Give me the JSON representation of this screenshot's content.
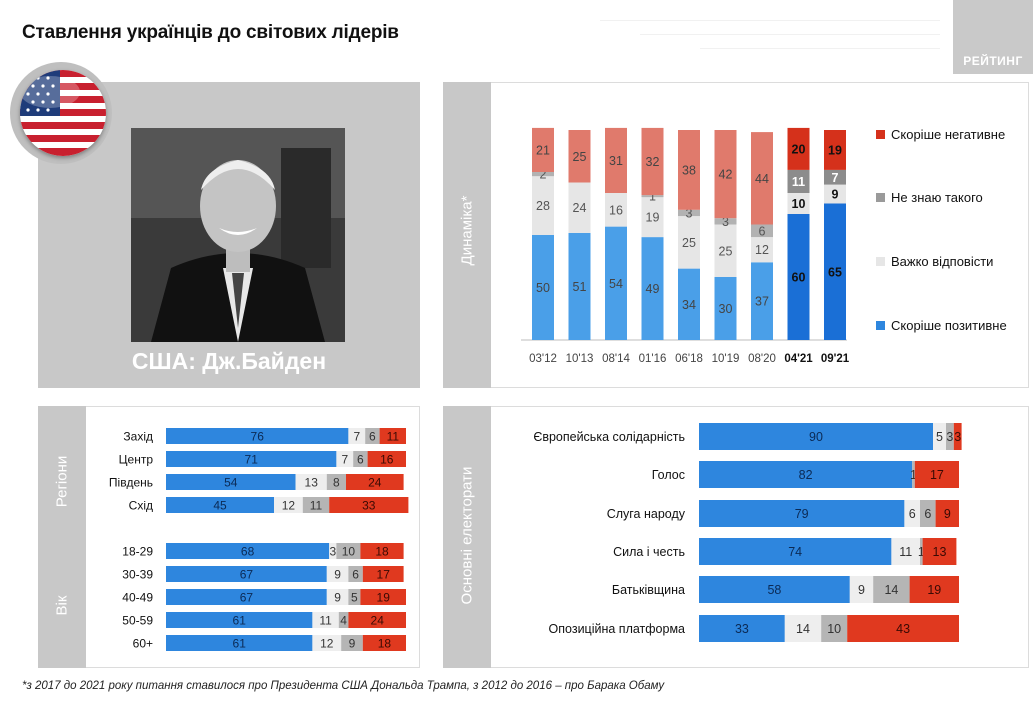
{
  "title": "Ставлення українців до світових лідерів",
  "logo": "РЕЙТИНГ",
  "caption": "США: Дж.Байден",
  "panel_labels": {
    "dynamics": "Динаміка*",
    "regions": "Регіони",
    "age": "Вік",
    "electorates": "Основні електорати"
  },
  "footnote": "*з 2017 до 2021 року питання ставилося про Президента США Дональда Трампа, з 2012 до 2016 – про Барака Обаму",
  "colors": {
    "positive": "#4a9fe8",
    "hard": "#e6e6e6",
    "unknown": "#b2b2b2",
    "negative": "#e07a6c",
    "positive_strong": "#1a6fd6",
    "negative_strong": "#d5311b",
    "unknown_strong": "#8c8c8c",
    "bar_positive": "#2e86de",
    "bar_negative": "#e0391f",
    "bar_unknown": "#b5b5b5",
    "bar_hard": "#eeeeee"
  },
  "chart_data": [
    {
      "type": "bar",
      "stacked": true,
      "orientation": "vertical",
      "categories": [
        "03'12",
        "10'13",
        "08'14",
        "01'16",
        "06'18",
        "10'19",
        "08'20",
        "04'21",
        "09'21"
      ],
      "highlighted_categories": [
        "04'21",
        "09'21"
      ],
      "series": [
        {
          "name": "Скоріше позитивне",
          "values": [
            50,
            51,
            54,
            49,
            34,
            30,
            37,
            60,
            65
          ]
        },
        {
          "name": "Важко відповісти",
          "values": [
            28,
            24,
            16,
            19,
            25,
            25,
            12,
            10,
            9
          ]
        },
        {
          "name": "Не знаю такого",
          "values": [
            2,
            null,
            null,
            1,
            3,
            3,
            6,
            11,
            7
          ]
        },
        {
          "name": "Скоріше негативне",
          "values": [
            21,
            25,
            31,
            32,
            38,
            42,
            44,
            20,
            19
          ]
        }
      ],
      "legend_order": [
        "Скоріше негативне",
        "Не знаю такого",
        "Важко відповісти",
        "Скоріше позитивне"
      ],
      "legend": "right"
    },
    {
      "type": "bar",
      "stacked": true,
      "orientation": "horizontal",
      "groups": [
        {
          "label": "Регіони",
          "categories": [
            "Захід",
            "Центр",
            "Південь",
            "Схід"
          ]
        },
        {
          "label": "Вік",
          "categories": [
            "18-29",
            "30-39",
            "40-49",
            "50-59",
            "60+"
          ]
        }
      ],
      "categories": [
        "Захід",
        "Центр",
        "Південь",
        "Схід",
        "18-29",
        "30-39",
        "40-49",
        "50-59",
        "60+"
      ],
      "series": [
        {
          "name": "Скоріше позитивне",
          "values": [
            76,
            71,
            54,
            45,
            68,
            67,
            67,
            61,
            61
          ]
        },
        {
          "name": "Важко відповісти",
          "values": [
            7,
            7,
            13,
            12,
            3,
            9,
            9,
            11,
            12
          ]
        },
        {
          "name": "Не знаю такого",
          "values": [
            6,
            6,
            8,
            11,
            10,
            6,
            5,
            4,
            9
          ]
        },
        {
          "name": "Скоріше негативне",
          "values": [
            11,
            16,
            24,
            33,
            18,
            17,
            19,
            24,
            18
          ]
        }
      ]
    },
    {
      "type": "bar",
      "stacked": true,
      "orientation": "horizontal",
      "label": "Основні електорати",
      "categories": [
        "Європейська солідарність",
        "Голос",
        "Слуга народу",
        "Сила і честь",
        "Батьківщина",
        "Опозиційна платформа"
      ],
      "series": [
        {
          "name": "Скоріше позитивне",
          "values": [
            90,
            82,
            79,
            74,
            58,
            33
          ]
        },
        {
          "name": "Важко відповісти",
          "values": [
            5,
            null,
            6,
            11,
            9,
            14
          ]
        },
        {
          "name": "Не знаю такого",
          "values": [
            3,
            1,
            6,
            1,
            14,
            10
          ]
        },
        {
          "name": "Скоріше негативне",
          "values": [
            3,
            17,
            9,
            13,
            19,
            43
          ]
        }
      ]
    }
  ]
}
